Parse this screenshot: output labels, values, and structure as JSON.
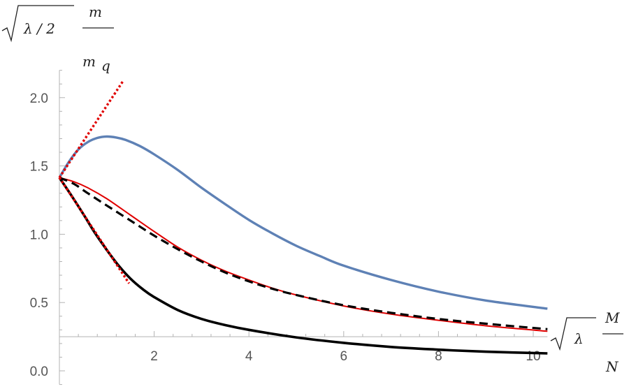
{
  "chart_data": {
    "type": "line",
    "title": "",
    "ylabel": {
      "root": "λ / 2",
      "numerator": "m",
      "denominator": "m",
      "denominator_sub": "q"
    },
    "xlabel": {
      "root": "λ",
      "numerator": "M",
      "denominator": "N"
    },
    "xlim": [
      0,
      10.3
    ],
    "ylim": [
      -0.1,
      2.2
    ],
    "x_ticks": [
      2,
      4,
      6,
      8,
      10
    ],
    "y_ticks": [
      0.0,
      0.5,
      1.0,
      1.5,
      2.0
    ],
    "x_tick_labels": [
      "2",
      "4",
      "6",
      "8",
      "10"
    ],
    "y_tick_labels": [
      "0.0",
      "0.5",
      "1.0",
      "1.5",
      "2.0"
    ],
    "grid": false,
    "legend": "none",
    "series": [
      {
        "color": "#5e81b5",
        "style": "solid",
        "width": 3.4,
        "x": [
          0,
          0.2,
          0.4,
          0.6,
          0.8,
          1.0,
          1.2,
          1.4,
          1.7,
          2.0,
          2.5,
          3.0,
          3.5,
          4.0,
          4.5,
          5.0,
          5.5,
          6.0,
          7.0,
          8.0,
          9.0,
          10.3
        ],
        "y": [
          1.414,
          1.53,
          1.62,
          1.675,
          1.705,
          1.715,
          1.708,
          1.69,
          1.645,
          1.585,
          1.47,
          1.34,
          1.22,
          1.105,
          1.005,
          0.915,
          0.84,
          0.77,
          0.665,
          0.58,
          0.515,
          0.455
        ]
      },
      {
        "color": "#e00000",
        "style": "solid",
        "width": 2.0,
        "x": [
          0,
          0.3,
          0.6,
          1.0,
          1.5,
          2.0,
          2.5,
          3.0,
          3.5,
          4.0,
          4.5,
          5.0,
          6.0,
          7.0,
          8.0,
          9.0,
          10.3
        ],
        "y": [
          1.414,
          1.385,
          1.34,
          1.26,
          1.14,
          1.02,
          0.905,
          0.81,
          0.73,
          0.665,
          0.605,
          0.555,
          0.475,
          0.415,
          0.37,
          0.33,
          0.29
        ]
      },
      {
        "color": "#000000",
        "style": "dashed",
        "width": 3.2,
        "x": [
          0,
          0.3,
          0.6,
          1.0,
          1.5,
          2.0,
          2.5,
          3.0,
          3.5,
          4.0,
          4.5,
          5.0,
          6.0,
          7.0,
          8.0,
          9.0,
          10.3
        ],
        "y": [
          1.414,
          1.37,
          1.3,
          1.21,
          1.1,
          0.99,
          0.89,
          0.8,
          0.72,
          0.655,
          0.6,
          0.555,
          0.48,
          0.425,
          0.38,
          0.345,
          0.305
        ]
      },
      {
        "color": "#000000",
        "style": "solid",
        "width": 3.6,
        "x": [
          0,
          0.25,
          0.5,
          0.75,
          1.0,
          1.25,
          1.5,
          1.75,
          2.0,
          2.5,
          3.0,
          3.5,
          4.0,
          5.0,
          6.0,
          7.0,
          8.0,
          9.0,
          10.3
        ],
        "y": [
          1.414,
          1.285,
          1.15,
          1.01,
          0.885,
          0.77,
          0.675,
          0.6,
          0.54,
          0.445,
          0.38,
          0.335,
          0.3,
          0.245,
          0.205,
          0.175,
          0.155,
          0.14,
          0.128
        ]
      },
      {
        "color": "#e00000",
        "style": "dotted",
        "width": 3.4,
        "x": [
          0,
          1.34
        ],
        "y": [
          1.414,
          2.12
        ]
      },
      {
        "color": "#e00000",
        "style": "dotted",
        "width": 3.4,
        "x": [
          0,
          1.47
        ],
        "y": [
          1.414,
          0.64
        ]
      }
    ]
  }
}
